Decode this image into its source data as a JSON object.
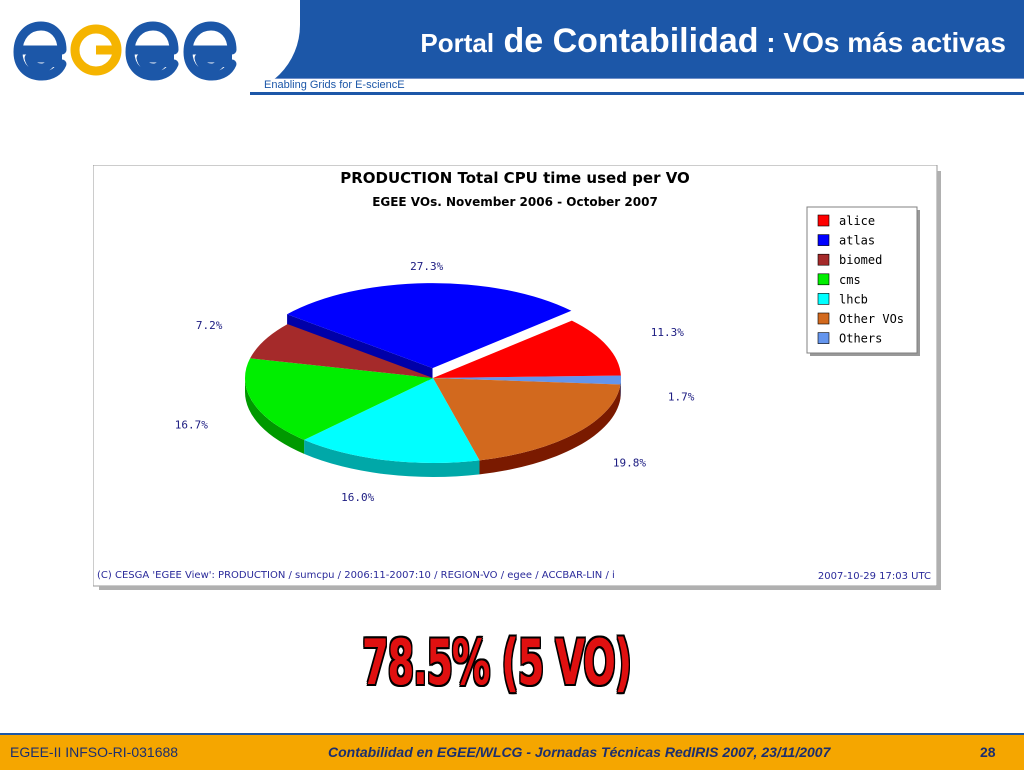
{
  "header": {
    "logo_text": "egee",
    "title_part1": "Portal",
    "title_part2": " de Contabilidad",
    "title_part3": " : VOs más activas",
    "tagline": "Enabling Grids for E-sciencE"
  },
  "colors": {
    "brand_blue": "#1c57a8",
    "logo_blue": "#1c57a8",
    "logo_yellow": "#f5b400",
    "footer_orange": "#f5a600",
    "highlight_red": "#e01010"
  },
  "chart_data": {
    "type": "pie",
    "title": "PRODUCTION Total CPU time used per VO",
    "subtitle": "EGEE VOs. November 2006 - October 2007",
    "legend_position": "top-right",
    "series": [
      {
        "name": "alice",
        "value": 11.3,
        "label": "11.3%",
        "color": "#ff0000",
        "side": "#b00000"
      },
      {
        "name": "atlas",
        "value": 27.3,
        "label": "27.3%",
        "color": "#0000ff",
        "side": "#0000a8"
      },
      {
        "name": "biomed",
        "value": 7.2,
        "label": "7.2%",
        "color": "#a52a2a",
        "side": "#6e1818"
      },
      {
        "name": "cms",
        "value": 16.7,
        "label": "16.7%",
        "color": "#00ee00",
        "side": "#009900"
      },
      {
        "name": "lhcb",
        "value": 16.0,
        "label": "16.0%",
        "color": "#00ffff",
        "side": "#00a8a8"
      },
      {
        "name": "Other VOs",
        "value": 19.8,
        "label": "19.8%",
        "color": "#d2691e",
        "side": "#7a1a00"
      },
      {
        "name": "Others",
        "value": 1.7,
        "label": "1.7%",
        "color": "#6495ed",
        "side": "#3a5fa8"
      }
    ],
    "footnote_left": "(C) CESGA 'EGEE View': PRODUCTION / sumcpu / 2006:11-2007:10 / REGION-VO / egee / ACCBAR-LIN / i",
    "footnote_right": "2007-10-29 17:03 UTC"
  },
  "highlight": "78.5% (5 VO)",
  "footer": {
    "left": "EGEE-II INFSO-RI-031688",
    "center": "Contabilidad en EGEE/WLCG - Jornadas Técnicas RedIRIS 2007, 23/11/2007",
    "page": "28"
  }
}
